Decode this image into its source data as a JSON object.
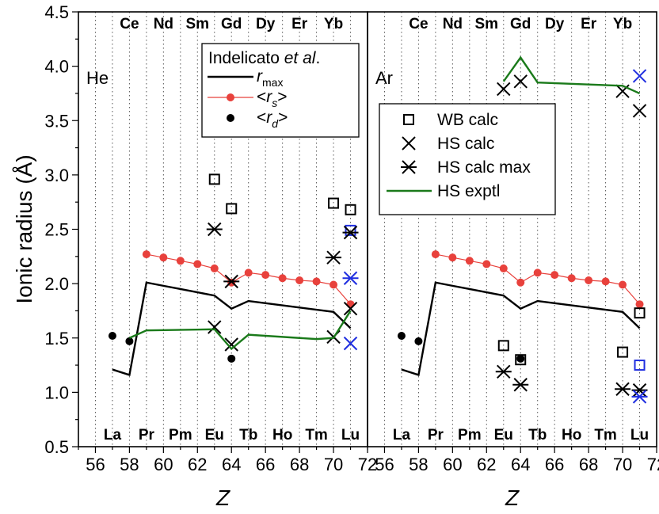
{
  "chart_data": [
    {
      "type": "scatter",
      "panel": "He",
      "xlabel": "Z",
      "ylabel": "Ionic radius (Å)",
      "xlim": [
        55,
        72
      ],
      "ylim": [
        0.5,
        4.5
      ],
      "xticks": [
        56,
        58,
        60,
        62,
        64,
        66,
        68,
        70,
        72
      ],
      "yticks": [
        0.5,
        1.0,
        1.5,
        2.0,
        2.5,
        3.0,
        3.5,
        4.0,
        4.5
      ],
      "elements_top": [
        {
          "z": 58,
          "symbol": "Ce"
        },
        {
          "z": 60,
          "symbol": "Nd"
        },
        {
          "z": 62,
          "symbol": "Sm"
        },
        {
          "z": 64,
          "symbol": "Gd"
        },
        {
          "z": 66,
          "symbol": "Dy"
        },
        {
          "z": 68,
          "symbol": "Er"
        },
        {
          "z": 70,
          "symbol": "Yb"
        }
      ],
      "elements_bottom": [
        {
          "z": 57,
          "symbol": "La"
        },
        {
          "z": 59,
          "symbol": "Pr"
        },
        {
          "z": 61,
          "symbol": "Pm"
        },
        {
          "z": 63,
          "symbol": "Eu"
        },
        {
          "z": 65,
          "symbol": "Tb"
        },
        {
          "z": 67,
          "symbol": "Ho"
        },
        {
          "z": 69,
          "symbol": "Tm"
        },
        {
          "z": 71,
          "symbol": "Lu"
        }
      ],
      "legend": {
        "title_main": "Indelicato ",
        "title_italic": "et al",
        "title_end": ".",
        "entries": [
          {
            "sym": "r",
            "sub": "max",
            "br": false
          },
          {
            "sym": "r",
            "sub": "s",
            "br": true
          },
          {
            "sym": "r",
            "sub": "d",
            "br": true
          }
        ]
      },
      "series": [
        {
          "name": "r_max",
          "style": "line",
          "color": "#000000",
          "x": [
            57,
            58,
            59,
            60,
            61,
            62,
            63,
            64,
            65,
            66,
            67,
            68,
            69,
            70,
            71
          ],
          "y": [
            1.21,
            1.16,
            2.01,
            1.98,
            1.95,
            1.92,
            1.89,
            1.77,
            1.84,
            1.82,
            1.8,
            1.78,
            1.76,
            1.74,
            1.59
          ]
        },
        {
          "name": "r_s",
          "style": "line-marker",
          "color": "#e8413c",
          "x": [
            59,
            60,
            61,
            62,
            63,
            64,
            65,
            66,
            67,
            68,
            69,
            70,
            71
          ],
          "y": [
            2.27,
            2.24,
            2.21,
            2.18,
            2.14,
            2.01,
            2.1,
            2.08,
            2.05,
            2.03,
            2.02,
            1.99,
            1.81
          ]
        },
        {
          "name": "r_d",
          "style": "dot",
          "color": "#000000",
          "x": [
            57,
            58,
            64
          ],
          "y": [
            1.52,
            1.47,
            1.31
          ]
        },
        {
          "name": "WB calc",
          "style": "square",
          "color": "#000000",
          "x": [
            63,
            64,
            70,
            71
          ],
          "y": [
            2.96,
            2.69,
            2.74,
            2.68
          ]
        },
        {
          "name": "WB calc (blue)",
          "style": "square",
          "color": "#1f2ee0",
          "x": [
            71
          ],
          "y": [
            2.49
          ]
        },
        {
          "name": "HS calc",
          "style": "x",
          "color": "#000000",
          "x": [
            63,
            64,
            70,
            71
          ],
          "y": [
            1.6,
            1.44,
            1.51,
            1.77
          ]
        },
        {
          "name": "HS calc (blue)",
          "style": "x",
          "color": "#1f2ee0",
          "x": [
            71
          ],
          "y": [
            1.45
          ]
        },
        {
          "name": "HS calc max",
          "style": "star",
          "color": "#000000",
          "x": [
            63,
            64,
            70,
            71
          ],
          "y": [
            2.5,
            2.02,
            2.24,
            2.47
          ]
        },
        {
          "name": "HS calc max (blue)",
          "style": "star",
          "color": "#1f2ee0",
          "x": [
            71
          ],
          "y": [
            2.05
          ]
        },
        {
          "name": "HS exptl",
          "style": "line",
          "color": "#1a7a1a",
          "x": [
            58,
            59,
            63,
            64,
            65,
            69,
            70,
            71
          ],
          "y": [
            1.5,
            1.57,
            1.58,
            1.4,
            1.53,
            1.49,
            1.5,
            1.75
          ]
        }
      ]
    },
    {
      "type": "scatter",
      "panel": "Ar",
      "xlabel": "Z",
      "ylabel": "",
      "xlim": [
        55,
        72
      ],
      "ylim": [
        0.5,
        4.5
      ],
      "xticks": [
        56,
        58,
        60,
        62,
        64,
        66,
        68,
        70,
        72
      ],
      "elements_top": [
        {
          "z": 58,
          "symbol": "Ce"
        },
        {
          "z": 60,
          "symbol": "Nd"
        },
        {
          "z": 62,
          "symbol": "Sm"
        },
        {
          "z": 64,
          "symbol": "Gd"
        },
        {
          "z": 66,
          "symbol": "Dy"
        },
        {
          "z": 68,
          "symbol": "Er"
        },
        {
          "z": 70,
          "symbol": "Yb"
        }
      ],
      "elements_bottom": [
        {
          "z": 57,
          "symbol": "La"
        },
        {
          "z": 59,
          "symbol": "Pr"
        },
        {
          "z": 61,
          "symbol": "Pm"
        },
        {
          "z": 63,
          "symbol": "Eu"
        },
        {
          "z": 65,
          "symbol": "Tb"
        },
        {
          "z": 67,
          "symbol": "Ho"
        },
        {
          "z": 69,
          "symbol": "Tm"
        },
        {
          "z": 71,
          "symbol": "Lu"
        }
      ],
      "legend": {
        "entries": [
          {
            "label": "WB calc",
            "sym": "square"
          },
          {
            "label": "HS calc",
            "sym": "x"
          },
          {
            "label": "HS calc max",
            "sym": "star"
          },
          {
            "label": "HS exptl",
            "sym": "line"
          }
        ]
      },
      "series": [
        {
          "name": "r_max",
          "style": "line",
          "color": "#000000",
          "x": [
            57,
            58,
            59,
            60,
            61,
            62,
            63,
            64,
            65,
            66,
            67,
            68,
            69,
            70,
            71
          ],
          "y": [
            1.21,
            1.16,
            2.01,
            1.98,
            1.95,
            1.92,
            1.89,
            1.77,
            1.84,
            1.82,
            1.8,
            1.78,
            1.76,
            1.74,
            1.59
          ]
        },
        {
          "name": "r_s",
          "style": "line-marker",
          "color": "#e8413c",
          "x": [
            59,
            60,
            61,
            62,
            63,
            64,
            65,
            66,
            67,
            68,
            69,
            70,
            71
          ],
          "y": [
            2.27,
            2.24,
            2.21,
            2.18,
            2.14,
            2.01,
            2.1,
            2.08,
            2.05,
            2.03,
            2.02,
            1.99,
            1.81
          ]
        },
        {
          "name": "r_d",
          "style": "dot",
          "color": "#000000",
          "x": [
            57,
            58,
            64
          ],
          "y": [
            1.52,
            1.47,
            1.31
          ]
        },
        {
          "name": "WB calc",
          "style": "square",
          "color": "#000000",
          "x": [
            63,
            64,
            70,
            71
          ],
          "y": [
            1.43,
            1.3,
            1.37,
            1.73
          ]
        },
        {
          "name": "WB calc (blue)",
          "style": "square",
          "color": "#1f2ee0",
          "x": [
            71
          ],
          "y": [
            1.25
          ]
        },
        {
          "name": "HS calc",
          "style": "x",
          "color": "#000000",
          "x": [
            63,
            64,
            70,
            71
          ],
          "y": [
            3.79,
            3.86,
            3.77,
            3.59
          ]
        },
        {
          "name": "HS calc (blue)",
          "style": "x",
          "color": "#1f2ee0",
          "x": [
            71
          ],
          "y": [
            3.91
          ]
        },
        {
          "name": "HS calc max",
          "style": "star",
          "color": "#000000",
          "x": [
            63,
            64,
            70,
            71
          ],
          "y": [
            1.19,
            1.07,
            1.03,
            1.02
          ]
        },
        {
          "name": "HS calc max (blue)",
          "style": "star",
          "color": "#1f2ee0",
          "x": [
            71
          ],
          "y": [
            0.96
          ]
        },
        {
          "name": "HS exptl",
          "style": "line",
          "color": "#1a7a1a",
          "x": [
            63,
            64,
            65,
            70,
            71
          ],
          "y": [
            3.86,
            4.08,
            3.85,
            3.82,
            3.75
          ]
        }
      ]
    }
  ]
}
